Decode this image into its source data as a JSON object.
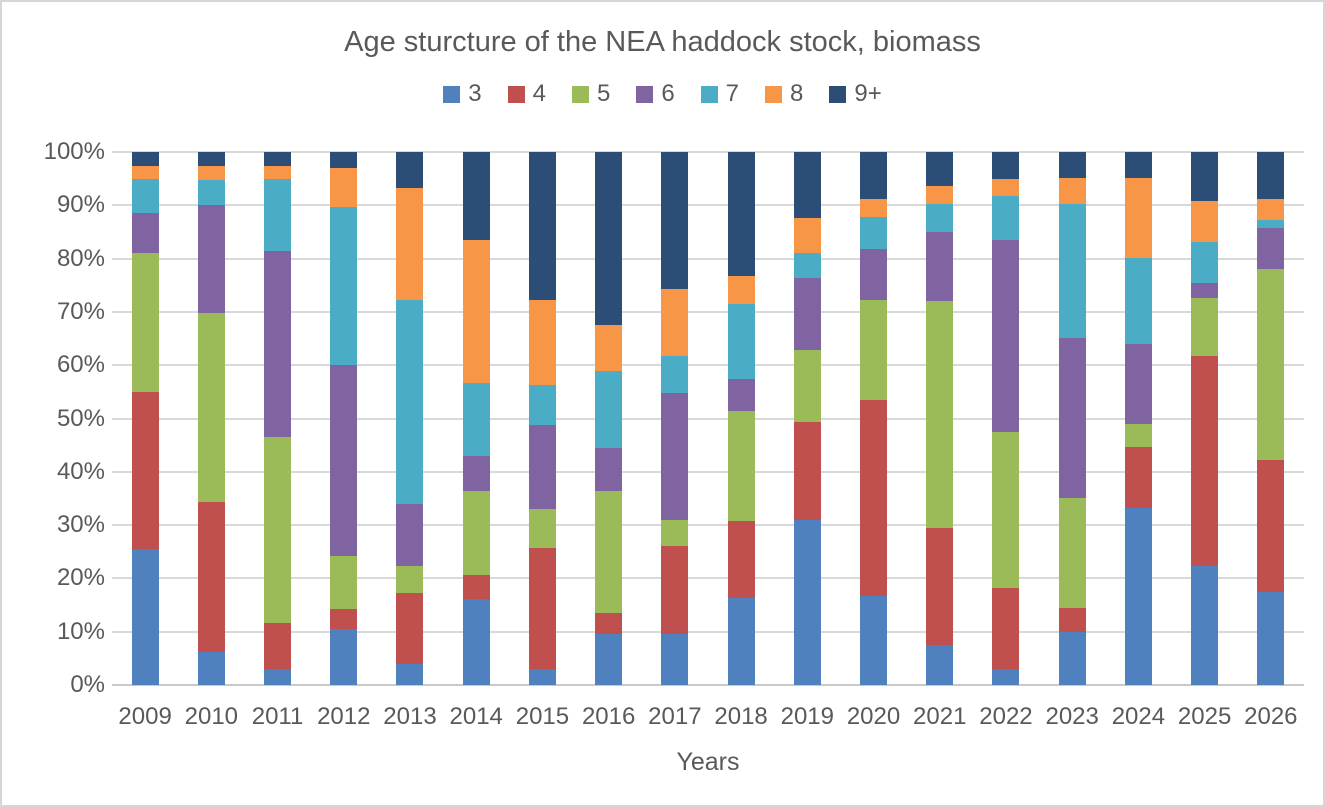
{
  "chart_data": {
    "type": "bar",
    "stacked": true,
    "percent_stacked": true,
    "title": "Age sturcture of the NEA haddock stock, biomass",
    "xlabel": "Years",
    "ylabel": "",
    "ylim": [
      0,
      100
    ],
    "y_ticks": [
      "0%",
      "10%",
      "20%",
      "30%",
      "40%",
      "50%",
      "60%",
      "70%",
      "80%",
      "90%",
      "100%"
    ],
    "grid": true,
    "legend_position": "top",
    "text_color": "#595959",
    "gridline_color": "#d9d9d9",
    "categories": [
      "2009",
      "2010",
      "2011",
      "2012",
      "2013",
      "2014",
      "2015",
      "2016",
      "2017",
      "2018",
      "2019",
      "2020",
      "2021",
      "2022",
      "2023",
      "2024",
      "2025",
      "2026"
    ],
    "series": [
      {
        "name": "3",
        "color": "#4e81bd",
        "values": [
          25.5,
          6.2,
          3.0,
          10.6,
          4.0,
          16.1,
          3.0,
          9.5,
          9.6,
          16.3,
          31.0,
          16.7,
          7.5,
          3.0,
          10.0,
          33.2,
          22.3,
          17.4
        ]
      },
      {
        "name": "4",
        "color": "#c0504d",
        "values": [
          29.5,
          28.1,
          8.7,
          3.6,
          13.3,
          4.6,
          22.8,
          4.1,
          16.4,
          14.4,
          18.4,
          36.7,
          21.9,
          15.2,
          4.4,
          11.5,
          39.4,
          24.9
        ]
      },
      {
        "name": "5",
        "color": "#9bbb59",
        "values": [
          26.0,
          35.5,
          34.9,
          10.1,
          5.1,
          15.7,
          7.3,
          22.8,
          4.9,
          20.7,
          13.4,
          18.9,
          42.7,
          29.2,
          20.7,
          4.2,
          10.9,
          35.7
        ]
      },
      {
        "name": "6",
        "color": "#8064a2",
        "values": [
          7.5,
          20.2,
          34.8,
          35.7,
          11.5,
          6.5,
          15.7,
          8.0,
          23.8,
          6.0,
          13.5,
          9.6,
          12.9,
          36.1,
          30.1,
          15.0,
          2.9,
          7.8
        ]
      },
      {
        "name": "7",
        "color": "#4bacc6",
        "values": [
          6.5,
          4.8,
          13.5,
          29.6,
          38.4,
          13.8,
          7.5,
          14.5,
          7.1,
          14.1,
          4.8,
          6.0,
          5.3,
          8.3,
          25.1,
          16.2,
          7.7,
          1.5
        ]
      },
      {
        "name": "8",
        "color": "#f79646",
        "values": [
          2.3,
          2.6,
          2.5,
          7.5,
          21.0,
          26.8,
          16.0,
          8.7,
          12.6,
          5.2,
          6.5,
          3.2,
          3.3,
          3.1,
          4.8,
          15.0,
          7.7,
          3.9
        ]
      },
      {
        "name": "9+",
        "color": "#2c4d75",
        "values": [
          2.7,
          2.6,
          2.6,
          2.9,
          6.7,
          16.5,
          27.7,
          32.4,
          25.6,
          23.3,
          12.4,
          8.9,
          6.4,
          5.1,
          4.9,
          4.9,
          9.1,
          8.8
        ]
      }
    ]
  }
}
